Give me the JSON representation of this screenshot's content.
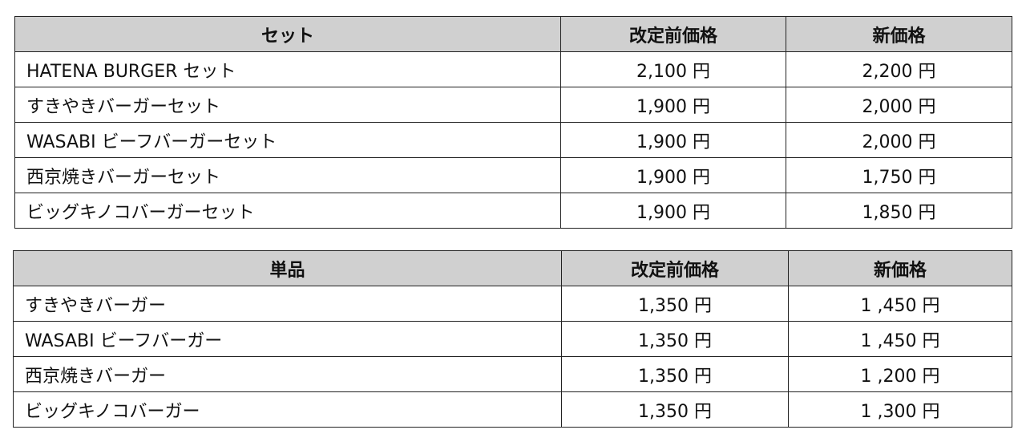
{
  "tables": [
    {
      "headers": [
        "セット",
        "改定前価格",
        "新価格"
      ],
      "rows": [
        [
          "HATENA BURGER セット",
          "2,100 円",
          "2,200 円"
        ],
        [
          "すきやきバーガーセット",
          "1,900 円",
          "2,000 円"
        ],
        [
          "WASABI ビーフバーガーセット",
          "1,900 円",
          "2,000 円"
        ],
        [
          "西京焼きバーガーセット",
          "1,900 円",
          "1,750 円"
        ],
        [
          "ビッグキノコバーガーセット",
          "1,900 円",
          "1,850 円"
        ]
      ]
    },
    {
      "headers": [
        "単品",
        "改定前価格",
        "新価格"
      ],
      "rows": [
        [
          "すきやきバーガー",
          "1,350 円",
          "1 ,450 円"
        ],
        [
          "WASABI ビーフバーガー",
          "1,350 円",
          "1 ,450 円"
        ],
        [
          "西京焼きバーガー",
          "1,350 円",
          "1 ,200 円"
        ],
        [
          "ビッグキノコバーガー",
          "1,350 円",
          "1 ,300 円"
        ]
      ]
    }
  ],
  "colors": {
    "header_bg": "#d0d0d0",
    "border": "#222222"
  }
}
